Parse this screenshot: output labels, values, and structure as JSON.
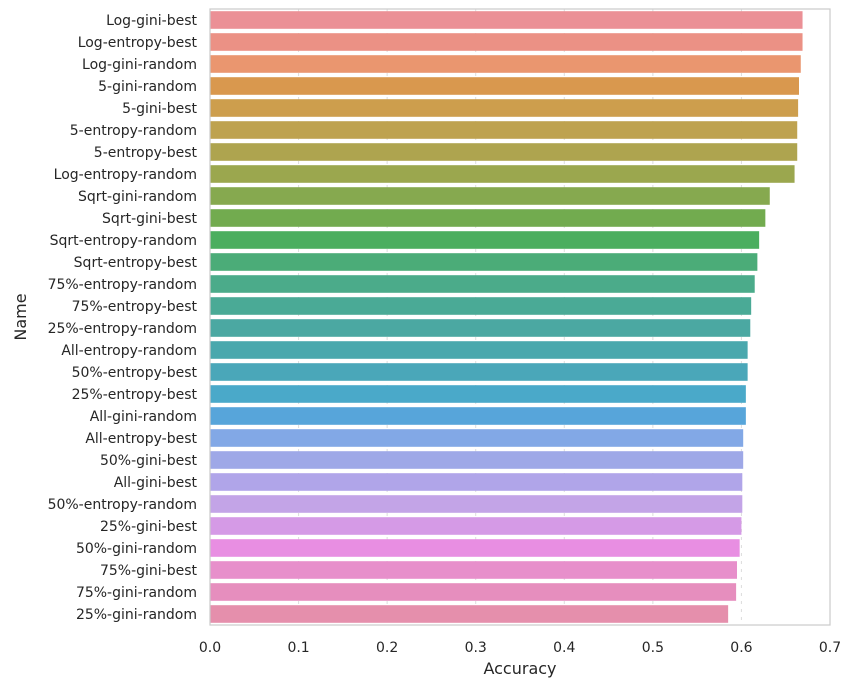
{
  "chart_data": {
    "type": "bar",
    "orientation": "horizontal",
    "xlabel": "Accuracy",
    "ylabel": "Name",
    "xlim": [
      0.0,
      0.7
    ],
    "x_ticks": [
      "0.0",
      "0.1",
      "0.2",
      "0.3",
      "0.4",
      "0.5",
      "0.6",
      "0.7"
    ],
    "grid": true,
    "categories": [
      "Log-gini-best",
      "Log-entropy-best",
      "Log-gini-random",
      "5-gini-random",
      "5-gini-best",
      "5-entropy-random",
      "5-entropy-best",
      "Log-entropy-random",
      "Sqrt-gini-random",
      "Sqrt-gini-best",
      "Sqrt-entropy-random",
      "Sqrt-entropy-best",
      "75%-entropy-random",
      "75%-entropy-best",
      "25%-entropy-random",
      "All-entropy-random",
      "50%-entropy-best",
      "25%-entropy-best",
      "All-gini-random",
      "All-entropy-best",
      "50%-gini-best",
      "All-gini-best",
      "50%-entropy-random",
      "25%-gini-best",
      "50%-gini-random",
      "75%-gini-best",
      "75%-gini-random",
      "25%-gini-random"
    ],
    "values": [
      0.669,
      0.669,
      0.667,
      0.665,
      0.664,
      0.663,
      0.663,
      0.66,
      0.632,
      0.627,
      0.62,
      0.618,
      0.615,
      0.611,
      0.61,
      0.607,
      0.607,
      0.605,
      0.605,
      0.602,
      0.602,
      0.601,
      0.601,
      0.6,
      0.598,
      0.595,
      0.594,
      0.585
    ],
    "colors": [
      "#EB9096",
      "#EB9185",
      "#EA966F",
      "#D9984E",
      "#CD9E4D",
      "#BEA24F",
      "#AEA44F",
      "#9BA74E",
      "#86A94F",
      "#72AB4F",
      "#4BAE5F",
      "#4BAC78",
      "#4BAB8A",
      "#4AAA96",
      "#4BA8A2",
      "#4AA8AD",
      "#4AA7B9",
      "#4AA9C9",
      "#57A5DA",
      "#82A8E6",
      "#9EA8E7",
      "#B0A5E9",
      "#C3A4E7",
      "#D59AE6",
      "#E88EE2",
      "#E78FCB",
      "#E68EBE",
      "#E58FAC"
    ]
  }
}
